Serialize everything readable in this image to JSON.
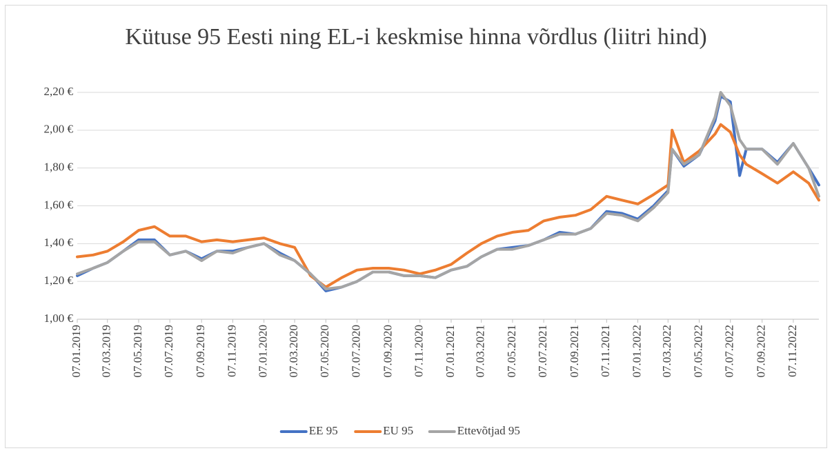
{
  "chart_data": {
    "type": "line",
    "title": "Kütuse 95 Eesti ning EL-i keskmise hinna võrdlus (liitri hind)",
    "x": [
      "07.01.2019",
      "07.02.2019",
      "07.03.2019",
      "07.04.2019",
      "07.05.2019",
      "07.06.2019",
      "07.07.2019",
      "07.08.2019",
      "07.09.2019",
      "07.10.2019",
      "07.11.2019",
      "07.12.2019",
      "07.01.2020",
      "07.02.2020",
      "07.03.2020",
      "07.04.2020",
      "07.05.2020",
      "07.06.2020",
      "07.07.2020",
      "07.08.2020",
      "07.09.2020",
      "07.10.2020",
      "07.11.2020",
      "07.12.2020",
      "07.01.2021",
      "07.02.2021",
      "07.03.2021",
      "07.04.2021",
      "07.05.2021",
      "07.06.2021",
      "07.07.2021",
      "07.08.2021",
      "07.09.2021",
      "07.10.2021",
      "07.11.2021",
      "07.12.2021",
      "07.01.2022",
      "07.02.2022",
      "07.03.2022",
      "15.03.2022",
      "07.04.2022",
      "07.05.2022",
      "07.06.2022",
      "18.06.2022",
      "07.07.2022",
      "25.07.2022",
      "07.08.2022",
      "07.09.2022",
      "07.10.2022",
      "07.11.2022",
      "07.12.2022",
      "27.12.2022"
    ],
    "series": [
      {
        "name": "EE 95",
        "color": "#4472c4",
        "values": [
          1.23,
          1.27,
          1.3,
          1.36,
          1.42,
          1.42,
          1.34,
          1.36,
          1.32,
          1.36,
          1.36,
          1.38,
          1.4,
          1.35,
          1.31,
          1.24,
          1.15,
          1.17,
          1.2,
          1.25,
          1.25,
          1.23,
          1.23,
          1.22,
          1.26,
          1.28,
          1.33,
          1.37,
          1.38,
          1.39,
          1.42,
          1.46,
          1.45,
          1.48,
          1.57,
          1.56,
          1.53,
          1.6,
          1.68,
          1.9,
          1.81,
          1.87,
          2.05,
          2.18,
          2.15,
          1.76,
          1.9,
          1.9,
          1.83,
          1.93,
          1.8,
          1.71
        ]
      },
      {
        "name": "EU 95",
        "color": "#ed7d31",
        "values": [
          1.33,
          1.34,
          1.36,
          1.41,
          1.47,
          1.49,
          1.44,
          1.44,
          1.41,
          1.42,
          1.41,
          1.42,
          1.43,
          1.4,
          1.38,
          1.23,
          1.17,
          1.22,
          1.26,
          1.27,
          1.27,
          1.26,
          1.24,
          1.26,
          1.29,
          1.35,
          1.4,
          1.44,
          1.46,
          1.47,
          1.52,
          1.54,
          1.55,
          1.58,
          1.65,
          1.63,
          1.61,
          1.66,
          1.71,
          2.0,
          1.83,
          1.89,
          1.98,
          2.03,
          1.99,
          1.87,
          1.82,
          1.77,
          1.72,
          1.78,
          1.72,
          1.63
        ]
      },
      {
        "name": "Ettevõtjad 95",
        "color": "#a5a5a5",
        "values": [
          1.24,
          1.27,
          1.3,
          1.36,
          1.41,
          1.41,
          1.34,
          1.36,
          1.31,
          1.36,
          1.35,
          1.38,
          1.4,
          1.34,
          1.31,
          1.24,
          1.16,
          1.17,
          1.2,
          1.25,
          1.25,
          1.23,
          1.23,
          1.22,
          1.26,
          1.28,
          1.33,
          1.37,
          1.37,
          1.39,
          1.42,
          1.45,
          1.45,
          1.48,
          1.56,
          1.55,
          1.52,
          1.59,
          1.67,
          1.9,
          1.82,
          1.87,
          2.07,
          2.2,
          2.13,
          1.95,
          1.9,
          1.9,
          1.82,
          1.93,
          1.8,
          1.65
        ]
      }
    ],
    "xlim": [
      "07.01.2019",
      "27.12.2022"
    ],
    "xticks": [
      "07.01.2019",
      "07.03.2019",
      "07.05.2019",
      "07.07.2019",
      "07.09.2019",
      "07.11.2019",
      "07.01.2020",
      "07.03.2020",
      "07.05.2020",
      "07.07.2020",
      "07.09.2020",
      "07.11.2020",
      "07.01.2021",
      "07.03.2021",
      "07.05.2021",
      "07.07.2021",
      "07.09.2021",
      "07.11.2021",
      "07.01.2022",
      "07.03.2022",
      "07.05.2022",
      "07.07.2022",
      "07.09.2022",
      "07.11.2022"
    ],
    "ylim": [
      1,
      2.2
    ],
    "yticks": [
      {
        "value": 1,
        "label": "1,00 €"
      },
      {
        "value": 1.2,
        "label": "1,20 €"
      },
      {
        "value": 1.4,
        "label": "1,40 €"
      },
      {
        "value": 1.6,
        "label": "1,60 €"
      },
      {
        "value": 1.8,
        "label": "1,80 €"
      },
      {
        "value": 2,
        "label": "2,00 €"
      },
      {
        "value": 2.2,
        "label": "2,20 €"
      }
    ],
    "grid": true,
    "legend": "bottom"
  }
}
